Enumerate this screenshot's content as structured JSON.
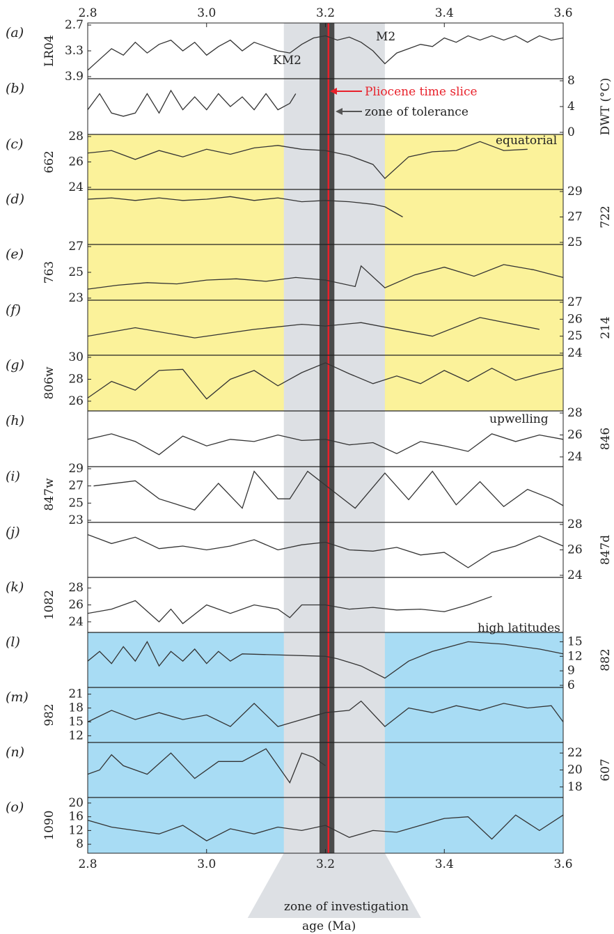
{
  "colors": {
    "equatorial_band": "#fbf29a",
    "high_latitude_band": "#a8dcf4",
    "zone_of_investigation": "#dde0e4",
    "zone_of_tolerance": "#4a4a4a",
    "pliocene_time_slice": "#e8202a",
    "series_line": "#333333"
  },
  "top_axis_ticks": [
    "2.8",
    "3.0",
    "3.2",
    "3.4",
    "3.6"
  ],
  "bottom_axis_ticks": [
    "2.8",
    "3.0",
    "3.2",
    "3.4",
    "3.6"
  ],
  "x_axis_label": "age (Ma)",
  "annotations": {
    "km2": "KM2",
    "m2": "M2",
    "pliocene": "Pliocene time slice",
    "tolerance": "zone of tolerance",
    "equatorial": "equatorial",
    "upwelling": "upwelling",
    "high_latitudes": "high latitudes",
    "investigation": "zone of investigation"
  },
  "panels": [
    {
      "letter": "(a)",
      "label": "LR04",
      "side": "left",
      "ticks": [
        "2.7",
        "3.3",
        "3.9"
      ],
      "reversed": true,
      "band": "none"
    },
    {
      "letter": "(b)",
      "label": "DWT (°C)",
      "side": "right",
      "ticks": [
        "0",
        "4",
        "8"
      ],
      "band": "none"
    },
    {
      "letter": "(c)",
      "label": "662",
      "side": "left",
      "ticks": [
        "24",
        "26",
        "28"
      ],
      "band": "equatorial"
    },
    {
      "letter": "(d)",
      "label": "722",
      "side": "right",
      "ticks": [
        "25",
        "27",
        "29"
      ],
      "band": "equatorial"
    },
    {
      "letter": "(e)",
      "label": "763",
      "side": "left",
      "ticks": [
        "23",
        "25",
        "27"
      ],
      "band": "equatorial"
    },
    {
      "letter": "(f)",
      "label": "214",
      "side": "right",
      "ticks": [
        "24",
        "25",
        "26",
        "27"
      ],
      "band": "equatorial"
    },
    {
      "letter": "(g)",
      "label": "806w",
      "side": "left",
      "ticks": [
        "26",
        "28",
        "30"
      ],
      "band": "equatorial"
    },
    {
      "letter": "(h)",
      "label": "846",
      "side": "right",
      "ticks": [
        "24",
        "26",
        "28"
      ],
      "band": "none"
    },
    {
      "letter": "(i)",
      "label": "847w",
      "side": "left",
      "ticks": [
        "23",
        "25",
        "27",
        "29"
      ],
      "band": "none"
    },
    {
      "letter": "(j)",
      "label": "847d",
      "side": "right",
      "ticks": [
        "24",
        "26",
        "28"
      ],
      "band": "none"
    },
    {
      "letter": "(k)",
      "label": "1082",
      "side": "left",
      "ticks": [
        "24",
        "26",
        "28"
      ],
      "band": "none"
    },
    {
      "letter": "(l)",
      "label": "882",
      "side": "right",
      "ticks": [
        "6",
        "9",
        "12",
        "15"
      ],
      "band": "high"
    },
    {
      "letter": "(m)",
      "label": "982",
      "side": "left",
      "ticks": [
        "12",
        "15",
        "18",
        "21"
      ],
      "band": "high"
    },
    {
      "letter": "(n)",
      "label": "607",
      "side": "right",
      "ticks": [
        "18",
        "20",
        "22"
      ],
      "band": "high"
    },
    {
      "letter": "(o)",
      "label": "1090",
      "side": "left",
      "ticks": [
        "8",
        "12",
        "16",
        "20"
      ],
      "band": "high"
    }
  ],
  "chart_data": {
    "type": "line",
    "xlabel": "age (Ma)",
    "xlim": [
      2.8,
      3.6
    ],
    "x_ticks": [
      2.8,
      3.0,
      3.2,
      3.4,
      3.6
    ],
    "zone_of_investigation": [
      3.13,
      3.3
    ],
    "zone_of_tolerance": [
      3.19,
      3.215
    ],
    "pliocene_time_slice": 3.205,
    "series": [
      {
        "name": "LR04",
        "panel": "a",
        "unit": "",
        "ylim": [
          3.9,
          2.7
        ],
        "y_ticks": [
          2.7,
          3.3,
          3.9
        ],
        "x": [
          2.8,
          2.82,
          2.84,
          2.86,
          2.88,
          2.9,
          2.92,
          2.94,
          2.96,
          2.98,
          3.0,
          3.02,
          3.04,
          3.06,
          3.08,
          3.1,
          3.12,
          3.14,
          3.16,
          3.18,
          3.2,
          3.22,
          3.24,
          3.26,
          3.28,
          3.3,
          3.32,
          3.34,
          3.36,
          3.38,
          3.4,
          3.42,
          3.44,
          3.46,
          3.48,
          3.5,
          3.52,
          3.54,
          3.56,
          3.58,
          3.6
        ],
        "y": [
          3.75,
          3.5,
          3.25,
          3.4,
          3.1,
          3.35,
          3.15,
          3.05,
          3.3,
          3.1,
          3.4,
          3.2,
          3.05,
          3.3,
          3.1,
          3.2,
          3.3,
          3.35,
          3.15,
          3.0,
          2.95,
          3.05,
          2.98,
          3.1,
          3.3,
          3.6,
          3.35,
          3.25,
          3.15,
          3.2,
          3.0,
          3.1,
          2.95,
          3.05,
          2.95,
          3.05,
          2.95,
          3.1,
          2.95,
          3.05,
          3.0
        ]
      },
      {
        "name": "DWT (°C)",
        "panel": "b",
        "unit": "°C",
        "ylim": [
          0,
          8
        ],
        "y_ticks": [
          0,
          4,
          8
        ],
        "x": [
          2.8,
          2.82,
          2.84,
          2.86,
          2.88,
          2.9,
          2.92,
          2.94,
          2.96,
          2.98,
          3.0,
          3.02,
          3.04,
          3.06,
          3.08,
          3.1,
          3.12,
          3.14,
          3.15
        ],
        "y": [
          3.5,
          6.0,
          3.0,
          2.5,
          3.0,
          6.0,
          3.0,
          6.5,
          3.5,
          5.5,
          3.5,
          6.0,
          4.0,
          5.5,
          3.5,
          6.0,
          3.5,
          4.5,
          6.0
        ]
      },
      {
        "name": "662",
        "panel": "c",
        "unit": "°C",
        "ylim": [
          24,
          28
        ],
        "y_ticks": [
          24,
          26,
          28
        ],
        "x": [
          2.8,
          2.84,
          2.88,
          2.92,
          2.96,
          3.0,
          3.04,
          3.08,
          3.12,
          3.16,
          3.2,
          3.24,
          3.28,
          3.3,
          3.34,
          3.38,
          3.42,
          3.46,
          3.5,
          3.54
        ],
        "y": [
          26.7,
          26.9,
          26.2,
          26.9,
          26.4,
          27.0,
          26.6,
          27.1,
          27.3,
          27.0,
          26.9,
          26.5,
          25.8,
          24.7,
          26.4,
          26.8,
          26.9,
          27.6,
          26.9,
          27.0
        ]
      },
      {
        "name": "722",
        "panel": "d",
        "unit": "°C",
        "ylim": [
          25,
          29
        ],
        "y_ticks": [
          25,
          27,
          29
        ],
        "x": [
          2.8,
          2.84,
          2.88,
          2.92,
          2.96,
          3.0,
          3.04,
          3.08,
          3.12,
          3.16,
          3.2,
          3.24,
          3.28,
          3.3,
          3.33
        ],
        "y": [
          28.4,
          28.5,
          28.3,
          28.5,
          28.3,
          28.4,
          28.6,
          28.3,
          28.5,
          28.2,
          28.3,
          28.2,
          28.0,
          27.8,
          27.0
        ]
      },
      {
        "name": "763",
        "panel": "e",
        "unit": "°C",
        "ylim": [
          23,
          27
        ],
        "y_ticks": [
          23,
          25,
          27
        ],
        "x": [
          2.8,
          2.85,
          2.9,
          2.95,
          3.0,
          3.05,
          3.1,
          3.15,
          3.2,
          3.25,
          3.26,
          3.3,
          3.35,
          3.4,
          3.45,
          3.5,
          3.55,
          3.6
        ],
        "y": [
          23.7,
          24.0,
          24.2,
          24.1,
          24.4,
          24.5,
          24.3,
          24.6,
          24.4,
          23.9,
          25.5,
          23.8,
          24.8,
          25.4,
          24.7,
          25.6,
          25.2,
          24.6
        ]
      },
      {
        "name": "214",
        "panel": "f",
        "unit": "°C",
        "ylim": [
          24,
          27
        ],
        "y_ticks": [
          24,
          25,
          26,
          27
        ],
        "x": [
          2.8,
          2.88,
          2.98,
          3.08,
          3.16,
          3.2,
          3.26,
          3.38,
          3.46,
          3.56
        ],
        "y": [
          25.0,
          25.5,
          24.9,
          25.4,
          25.7,
          25.6,
          25.8,
          25.0,
          26.1,
          25.4
        ]
      },
      {
        "name": "806w",
        "panel": "g",
        "unit": "°C",
        "ylim": [
          25.3,
          30
        ],
        "y_ticks": [
          26,
          28,
          30
        ],
        "x": [
          2.8,
          2.84,
          2.88,
          2.92,
          2.96,
          3.0,
          3.04,
          3.08,
          3.12,
          3.16,
          3.2,
          3.24,
          3.28,
          3.32,
          3.36,
          3.4,
          3.44,
          3.48,
          3.52,
          3.56,
          3.6
        ],
        "y": [
          26.3,
          27.8,
          27.0,
          28.8,
          28.9,
          26.2,
          28.0,
          28.8,
          27.4,
          28.6,
          29.5,
          28.5,
          27.6,
          28.3,
          27.6,
          28.8,
          27.8,
          29.0,
          27.9,
          28.5,
          29.0
        ]
      },
      {
        "name": "846",
        "panel": "h",
        "unit": "°C",
        "ylim": [
          23.3,
          28
        ],
        "y_ticks": [
          24,
          26,
          28
        ],
        "x": [
          2.8,
          2.84,
          2.88,
          2.92,
          2.96,
          3.0,
          3.04,
          3.08,
          3.12,
          3.16,
          3.2,
          3.24,
          3.28,
          3.32,
          3.36,
          3.4,
          3.44,
          3.48,
          3.52,
          3.56,
          3.6
        ],
        "y": [
          25.6,
          26.1,
          25.4,
          24.2,
          25.9,
          25.0,
          25.6,
          25.4,
          26.0,
          25.5,
          25.6,
          25.1,
          25.3,
          24.3,
          25.4,
          25.0,
          24.5,
          26.1,
          25.4,
          26.0,
          25.6
        ]
      },
      {
        "name": "847w",
        "panel": "i",
        "unit": "°C",
        "ylim": [
          23,
          29
        ],
        "y_ticks": [
          23,
          25,
          27,
          29
        ],
        "x": [
          2.81,
          2.88,
          2.92,
          2.98,
          3.02,
          3.06,
          3.08,
          3.12,
          3.14,
          3.17,
          3.25,
          3.3,
          3.34,
          3.38,
          3.42,
          3.46,
          3.5,
          3.54,
          3.58,
          3.6
        ],
        "y": [
          27.0,
          27.6,
          25.5,
          24.2,
          27.3,
          24.4,
          28.7,
          25.5,
          25.5,
          28.7,
          24.4,
          28.5,
          25.4,
          28.7,
          24.8,
          27.5,
          24.6,
          26.6,
          25.5,
          24.7
        ]
      },
      {
        "name": "847d",
        "panel": "j",
        "unit": "°C",
        "ylim": [
          24,
          28
        ],
        "y_ticks": [
          24,
          26,
          28
        ],
        "x": [
          2.8,
          2.84,
          2.88,
          2.92,
          2.96,
          3.0,
          3.04,
          3.08,
          3.12,
          3.16,
          3.2,
          3.24,
          3.28,
          3.32,
          3.36,
          3.4,
          3.44,
          3.48,
          3.52,
          3.56,
          3.6
        ],
        "y": [
          27.2,
          26.5,
          27.0,
          26.1,
          26.3,
          26.0,
          26.3,
          26.8,
          26.0,
          26.4,
          26.6,
          26.0,
          25.9,
          26.2,
          25.6,
          25.8,
          24.6,
          25.8,
          26.3,
          27.1,
          26.3
        ]
      },
      {
        "name": "1082",
        "panel": "k",
        "unit": "°C",
        "ylim": [
          23,
          29
        ],
        "y_ticks": [
          24,
          26,
          28
        ],
        "x": [
          2.8,
          2.84,
          2.88,
          2.92,
          2.94,
          2.96,
          3.0,
          3.04,
          3.08,
          3.12,
          3.14,
          3.16,
          3.2,
          3.24,
          3.28,
          3.32,
          3.36,
          3.4,
          3.44,
          3.48
        ],
        "y": [
          25.0,
          25.5,
          26.5,
          24.0,
          25.5,
          23.8,
          26.0,
          25.0,
          26.0,
          25.5,
          24.5,
          26.0,
          26.0,
          25.5,
          25.7,
          25.4,
          25.5,
          25.2,
          26.0,
          27.0
        ]
      },
      {
        "name": "882",
        "panel": "l",
        "unit": "°C",
        "ylim": [
          6,
          16.5
        ],
        "y_ticks": [
          6,
          9,
          12,
          15
        ],
        "x": [
          2.8,
          2.82,
          2.84,
          2.86,
          2.88,
          2.9,
          2.92,
          2.94,
          2.96,
          2.98,
          3.0,
          3.02,
          3.04,
          3.06,
          3.2,
          3.22,
          3.26,
          3.3,
          3.34,
          3.38,
          3.44,
          3.5,
          3.56,
          3.6
        ],
        "y": [
          11.0,
          13.0,
          10.5,
          14.0,
          11.0,
          15.0,
          10.0,
          13.0,
          11.0,
          13.5,
          10.5,
          13.0,
          11.0,
          12.5,
          12.0,
          11.5,
          10.0,
          7.5,
          11.0,
          13.0,
          15.0,
          14.5,
          13.5,
          12.5
        ]
      },
      {
        "name": "982",
        "panel": "m",
        "unit": "°C",
        "ylim": [
          11,
          22
        ],
        "y_ticks": [
          12,
          15,
          18,
          21
        ],
        "x": [
          2.8,
          2.84,
          2.88,
          2.92,
          2.96,
          3.0,
          3.04,
          3.08,
          3.12,
          3.16,
          3.2,
          3.24,
          3.26,
          3.3,
          3.34,
          3.38,
          3.42,
          3.46,
          3.5,
          3.54,
          3.58,
          3.6
        ],
        "y": [
          15.0,
          17.5,
          15.5,
          17.0,
          15.5,
          16.5,
          14.0,
          19.0,
          14.0,
          15.5,
          17.0,
          17.5,
          19.5,
          14.0,
          18.0,
          17.0,
          18.5,
          17.5,
          19.0,
          18.0,
          18.5,
          15.0
        ]
      },
      {
        "name": "607",
        "panel": "n",
        "unit": "°C",
        "ylim": [
          17,
          23
        ],
        "y_ticks": [
          18,
          20,
          22
        ],
        "x": [
          2.8,
          2.82,
          2.84,
          2.86,
          2.9,
          2.94,
          2.98,
          3.02,
          3.06,
          3.1,
          3.14,
          3.16,
          3.18,
          3.2
        ],
        "y": [
          19.5,
          20.0,
          21.8,
          20.5,
          19.5,
          22.0,
          19.0,
          21.0,
          21.0,
          22.5,
          18.5,
          22.0,
          21.5,
          20.5
        ]
      },
      {
        "name": "1090",
        "panel": "o",
        "unit": "°C",
        "ylim": [
          6,
          21
        ],
        "y_ticks": [
          8,
          12,
          16,
          20
        ],
        "x": [
          2.8,
          2.84,
          2.88,
          2.92,
          2.96,
          3.0,
          3.04,
          3.08,
          3.12,
          3.16,
          3.2,
          3.24,
          3.28,
          3.32,
          3.36,
          3.4,
          3.44,
          3.48,
          3.52,
          3.56,
          3.6
        ],
        "y": [
          15.0,
          13.0,
          12.0,
          11.0,
          13.5,
          9.0,
          12.5,
          11.0,
          13.0,
          12.0,
          13.5,
          10.0,
          12.0,
          11.5,
          13.5,
          15.5,
          16.0,
          9.5,
          16.5,
          12.0,
          16.5
        ]
      }
    ]
  }
}
